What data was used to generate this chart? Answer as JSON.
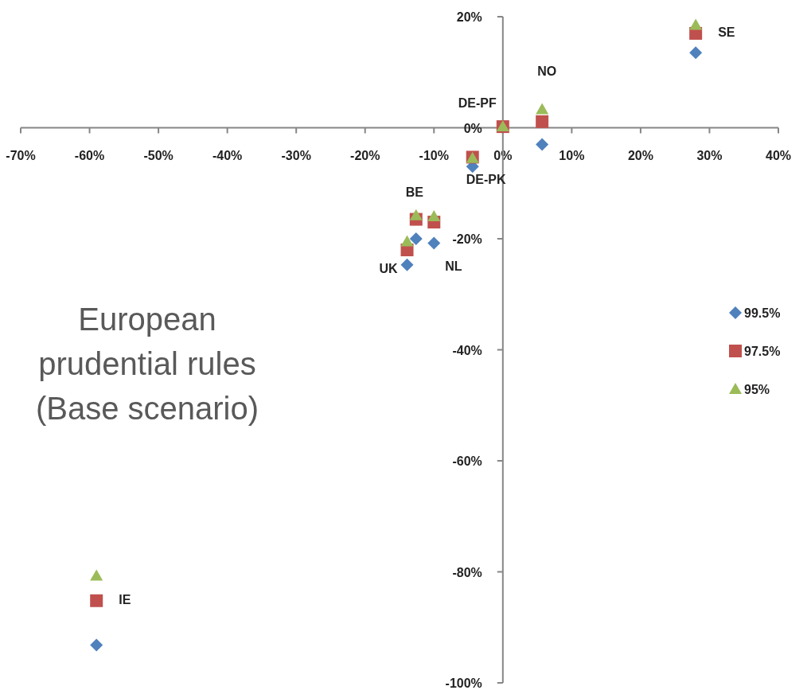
{
  "chart_data": {
    "type": "scatter",
    "xlim": [
      -70,
      40
    ],
    "xticks": [
      {
        "value": -70,
        "label": "-70%"
      },
      {
        "value": -60,
        "label": "-60%"
      },
      {
        "value": -50,
        "label": "-50%"
      },
      {
        "value": -40,
        "label": "-40%"
      },
      {
        "value": -30,
        "label": "-30%"
      },
      {
        "value": -20,
        "label": "-20%"
      },
      {
        "value": -10,
        "label": "-10%"
      },
      {
        "value": 0,
        "label": "0%"
      },
      {
        "value": 10,
        "label": "10%"
      },
      {
        "value": 20,
        "label": "20%"
      },
      {
        "value": 30,
        "label": "30%"
      },
      {
        "value": 40,
        "label": "40%"
      }
    ],
    "ylim": [
      -100,
      20
    ],
    "yticks": [
      {
        "value": -100,
        "label": "-100%"
      },
      {
        "value": -80,
        "label": "-80%"
      },
      {
        "value": -60,
        "label": "-60%"
      },
      {
        "value": -40,
        "label": "-40%"
      },
      {
        "value": -20,
        "label": "-20%"
      },
      {
        "value": 0,
        "label": "0%"
      },
      {
        "value": 20,
        "label": "20%"
      }
    ],
    "grid": false,
    "legend": "right",
    "series": [
      {
        "name": "99.5%",
        "color": "#4f81bd",
        "marker": "diamond",
        "x": [
          28,
          5.7,
          -4.4,
          -12.6,
          -10,
          -13.9,
          -59
        ],
        "values": [
          13.5,
          -3,
          -7,
          -20,
          -20.8,
          -24.7,
          -93.2
        ]
      },
      {
        "name": "97.5%",
        "color": "#c0504d",
        "marker": "square",
        "x": [
          28,
          5.7,
          0,
          -4.4,
          -12.6,
          -10,
          -13.9,
          -59
        ],
        "values": [
          17,
          1.1,
          0.2,
          -5.3,
          -16.5,
          -17,
          -22,
          -85.2
        ]
      },
      {
        "name": "95%",
        "color": "#9bbb59",
        "marker": "triangle",
        "x": [
          28,
          5.7,
          0,
          -4.4,
          -12.6,
          -10,
          -13.9,
          -59
        ],
        "values": [
          18.5,
          3.3,
          0.2,
          -5.5,
          -15.8,
          -16,
          -20.5,
          -80.7
        ]
      }
    ],
    "annotations": [
      {
        "text": "SE",
        "x": 28,
        "y": 17
      },
      {
        "text": "NO",
        "x": 5.7,
        "y": 3.3
      },
      {
        "text": "DE-PF",
        "x": 0,
        "y": 0.2
      },
      {
        "text": "DE-PK",
        "x": -4.4,
        "y": -5.5
      },
      {
        "text": "BE",
        "x": -12.6,
        "y": -15.8
      },
      {
        "text": "NL",
        "x": -10,
        "y": -20.8
      },
      {
        "text": "UK",
        "x": -13.9,
        "y": -24.7
      },
      {
        "text": "IE",
        "x": -59,
        "y": -85.2
      },
      "European prudential rules (Base scenario)"
    ]
  }
}
